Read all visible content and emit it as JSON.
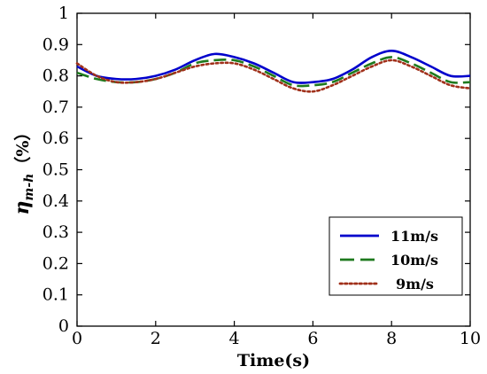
{
  "chart_data": {
    "type": "line",
    "xlabel": "Time(s)",
    "ylabel": {
      "symbol": "η",
      "subscript": "m-h",
      "unit": "（%）"
    },
    "xlim": [
      0,
      10
    ],
    "ylim": [
      0,
      1
    ],
    "xticks": [
      "0",
      "2",
      "4",
      "6",
      "8",
      "10"
    ],
    "yticks": [
      "0",
      "0.1",
      "0.2",
      "0.3",
      "0.4",
      "0.5",
      "0.6",
      "0.7",
      "0.8",
      "0.9",
      "1"
    ],
    "grid": false,
    "legend": {
      "placement": "bottom-right"
    },
    "x": [
      0,
      0.5,
      1,
      1.5,
      2,
      2.5,
      3,
      3.5,
      4,
      4.5,
      5,
      5.5,
      6,
      6.5,
      7,
      7.5,
      8,
      8.5,
      9,
      9.5,
      10
    ],
    "series": [
      {
        "name": "11m/s",
        "color": "#0000cc",
        "style": "solid",
        "values": [
          0.83,
          0.8,
          0.79,
          0.79,
          0.8,
          0.82,
          0.85,
          0.87,
          0.86,
          0.84,
          0.81,
          0.78,
          0.78,
          0.79,
          0.82,
          0.86,
          0.88,
          0.86,
          0.83,
          0.8,
          0.8
        ]
      },
      {
        "name": "10m/s",
        "color": "#1e7a1e",
        "style": "dashed",
        "values": [
          0.81,
          0.79,
          0.78,
          0.78,
          0.79,
          0.81,
          0.84,
          0.85,
          0.85,
          0.83,
          0.8,
          0.77,
          0.77,
          0.78,
          0.81,
          0.84,
          0.86,
          0.84,
          0.81,
          0.78,
          0.78
        ]
      },
      {
        "name": "9m/s",
        "color": "#a0301a",
        "style": "dotted",
        "values": [
          0.84,
          0.8,
          0.78,
          0.78,
          0.79,
          0.81,
          0.83,
          0.84,
          0.84,
          0.82,
          0.79,
          0.76,
          0.75,
          0.77,
          0.8,
          0.83,
          0.85,
          0.83,
          0.8,
          0.77,
          0.76
        ]
      }
    ]
  }
}
